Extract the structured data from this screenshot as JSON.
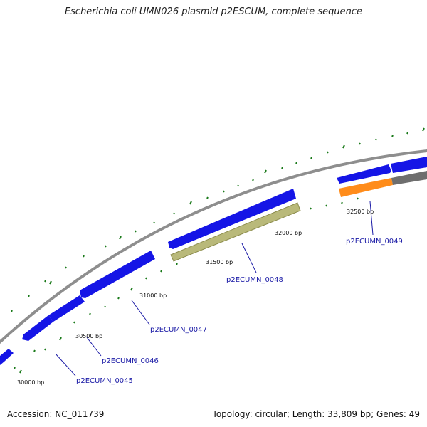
{
  "title": "Escherichia coli UMN026 plasmid p2ESCUM, complete sequence",
  "footer": {
    "accession": "Accession: NC_011739",
    "summary": "Topology: circular; Length: 33,809 bp; Genes: 49"
  },
  "colors": {
    "backbone": "#8e8e8e",
    "cds": "#1515e6",
    "cds_light": "#b5b5d8",
    "olive": "#b9b97a",
    "orange": "#ff8c1a",
    "grey_feature": "#6e6e6e",
    "tick": "#1a7a1a",
    "label": "#1a1aa6"
  },
  "tick_labels": [
    {
      "bp": 30000,
      "text": "30000 bp"
    },
    {
      "bp": 30500,
      "text": "30500 bp"
    },
    {
      "bp": 31000,
      "text": "31000 bp"
    },
    {
      "bp": 31500,
      "text": "31500 bp"
    },
    {
      "bp": 32000,
      "text": "32000 bp"
    },
    {
      "bp": 32500,
      "text": "32500 bp"
    }
  ],
  "gene_labels": [
    {
      "text": "p2ECUMN_0045"
    },
    {
      "text": "p2ECUMN_0046"
    },
    {
      "text": "p2ECUMN_0047"
    },
    {
      "text": "p2ECUMN_0048"
    },
    {
      "text": "p2ECUMN_0049"
    }
  ]
}
